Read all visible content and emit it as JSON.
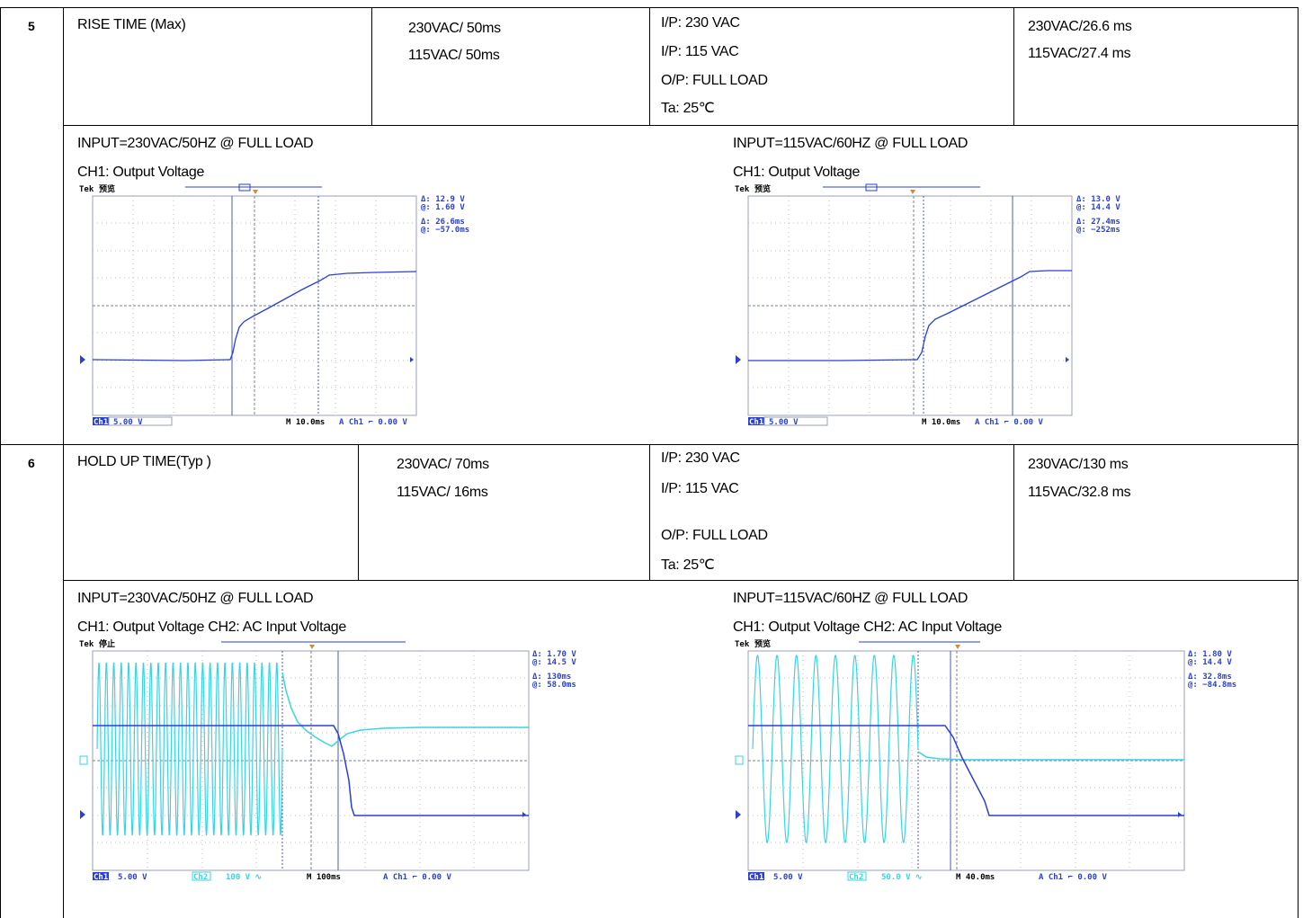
{
  "rows": [
    {
      "no": "5",
      "item": "RISE TIME (Max)",
      "spec": [
        "230VAC/ 50ms",
        "115VAC/ 50ms"
      ],
      "conditions": [
        "I/P:  230 VAC",
        "I/P:  115 VAC",
        "O/P:  FULL LOAD",
        "Ta:  25℃"
      ],
      "result": [
        "230VAC/26.6 ms",
        "115VAC/27.4 ms"
      ],
      "waveforms": [
        {
          "title": "INPUT=230VAC/50HZ @ FULL LOAD",
          "channels": "CH1:  Output Voltage",
          "brand": "Tek",
          "status": "预览",
          "readout": [
            "Δ:   12.9 V",
            "@:   1.60 V",
            "Δ:   26.6ms",
            "@:  −57.0ms"
          ],
          "bottom": {
            "ch1": "Ch1",
            "ch1_scale": "5.00 V",
            "time": "M 10.0ms",
            "trig": "A  Ch1  ⌐  0.00 V"
          }
        },
        {
          "title": "INPUT=115VAC/60HZ @ FULL LOAD",
          "channels": "CH1:  Output Voltage",
          "brand": "Tek",
          "status": "预览",
          "readout": [
            "Δ:   13.0 V",
            "@:   14.4 V",
            "Δ:   27.4ms",
            "@:   −252ms"
          ],
          "bottom": {
            "ch1": "Ch1",
            "ch1_scale": "5.00 V",
            "time": "M 10.0ms",
            "trig": "A  Ch1  ⌐  0.00 V"
          }
        }
      ]
    },
    {
      "no": "6",
      "item": "HOLD UP TIME(Typ )",
      "spec": [
        "230VAC/ 70ms",
        "115VAC/ 16ms"
      ],
      "conditions": [
        "I/P:  230 VAC",
        "I/P:  115 VAC",
        "O/P:  FULL LOAD",
        "Ta:  25℃"
      ],
      "result": [
        "230VAC/130 ms",
        "115VAC/32.8 ms"
      ],
      "waveforms": [
        {
          "title": "INPUT=230VAC/50HZ @ FULL LOAD",
          "channels": "CH1:  Output Voltage    CH2:  AC Input Voltage",
          "brand": "Tek",
          "status": "停止",
          "readout": [
            "Δ:   1.70 V",
            "@:   14.5 V",
            "Δ:   130ms",
            "@:   58.0ms"
          ],
          "bottom": {
            "ch1": "Ch1",
            "ch1_scale": "5.00 V",
            "ch2": "Ch2",
            "ch2_scale": "100 V ∿",
            "time": "M 100ms",
            "trig": "A  Ch1  ⌐  0.00 V"
          }
        },
        {
          "title": "INPUT=115VAC/60HZ @ FULL LOAD",
          "channels": "CH1:  Output Voltage    CH2:  AC Input Voltage",
          "brand": "Tek",
          "status": "预览",
          "readout": [
            "Δ:   1.80 V",
            "@:   14.4 V",
            "Δ:   32.8ms",
            "@:  −84.8ms"
          ],
          "bottom": {
            "ch1": "Ch1",
            "ch1_scale": "5.00 V",
            "ch2": "Ch2",
            "ch2_scale": "50.0 V ∿",
            "time": "M 40.0ms",
            "trig": "A  Ch1  ⌐  0.00 V"
          }
        }
      ]
    }
  ],
  "colors": {
    "ch1": "#2a3fd6",
    "ch2": "#35d6e6",
    "grid": "#9aa0b4",
    "cursor": "#4a5ad0"
  }
}
